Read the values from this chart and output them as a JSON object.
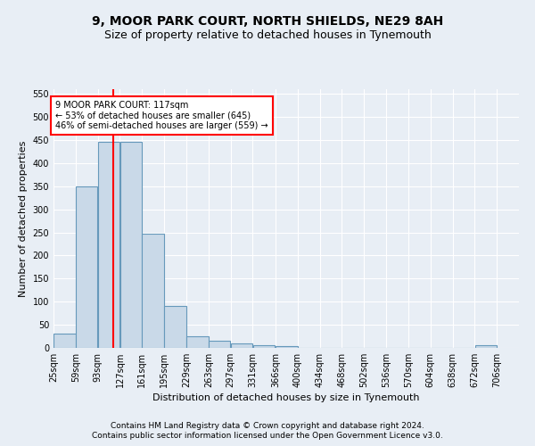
{
  "title": "9, MOOR PARK COURT, NORTH SHIELDS, NE29 8AH",
  "subtitle": "Size of property relative to detached houses in Tynemouth",
  "xlabel": "Distribution of detached houses by size in Tynemouth",
  "ylabel": "Number of detached properties",
  "bar_left_edges": [
    25,
    59,
    93,
    127,
    161,
    195,
    229,
    263,
    297,
    331,
    366,
    400,
    434,
    468,
    502,
    536,
    570,
    604,
    638,
    672
  ],
  "bar_heights": [
    30,
    350,
    447,
    447,
    247,
    91,
    25,
    15,
    10,
    5,
    3,
    0,
    0,
    0,
    0,
    0,
    0,
    0,
    0,
    5
  ],
  "bin_width": 34,
  "bar_color": "#c9d9e8",
  "bar_edge_color": "#6699bb",
  "vline_x": 117,
  "vline_color": "red",
  "annotation_text": "9 MOOR PARK COURT: 117sqm\n← 53% of detached houses are smaller (645)\n46% of semi-detached houses are larger (559) →",
  "annotation_box_color": "white",
  "annotation_box_edge_color": "red",
  "ylim": [
    0,
    560
  ],
  "yticks": [
    0,
    50,
    100,
    150,
    200,
    250,
    300,
    350,
    400,
    450,
    500,
    550
  ],
  "xtick_labels": [
    "25sqm",
    "59sqm",
    "93sqm",
    "127sqm",
    "161sqm",
    "195sqm",
    "229sqm",
    "263sqm",
    "297sqm",
    "331sqm",
    "366sqm",
    "400sqm",
    "434sqm",
    "468sqm",
    "502sqm",
    "536sqm",
    "570sqm",
    "604sqm",
    "638sqm",
    "672sqm",
    "706sqm"
  ],
  "xtick_positions": [
    25,
    59,
    93,
    127,
    161,
    195,
    229,
    263,
    297,
    331,
    366,
    400,
    434,
    468,
    502,
    536,
    570,
    604,
    638,
    672,
    706
  ],
  "footer_line1": "Contains HM Land Registry data © Crown copyright and database right 2024.",
  "footer_line2": "Contains public sector information licensed under the Open Government Licence v3.0.",
  "background_color": "#e8eef5",
  "plot_bg_color": "#e8eef5",
  "grid_color": "white",
  "title_fontsize": 10,
  "subtitle_fontsize": 9,
  "axis_label_fontsize": 8,
  "tick_fontsize": 7,
  "footer_fontsize": 6.5
}
